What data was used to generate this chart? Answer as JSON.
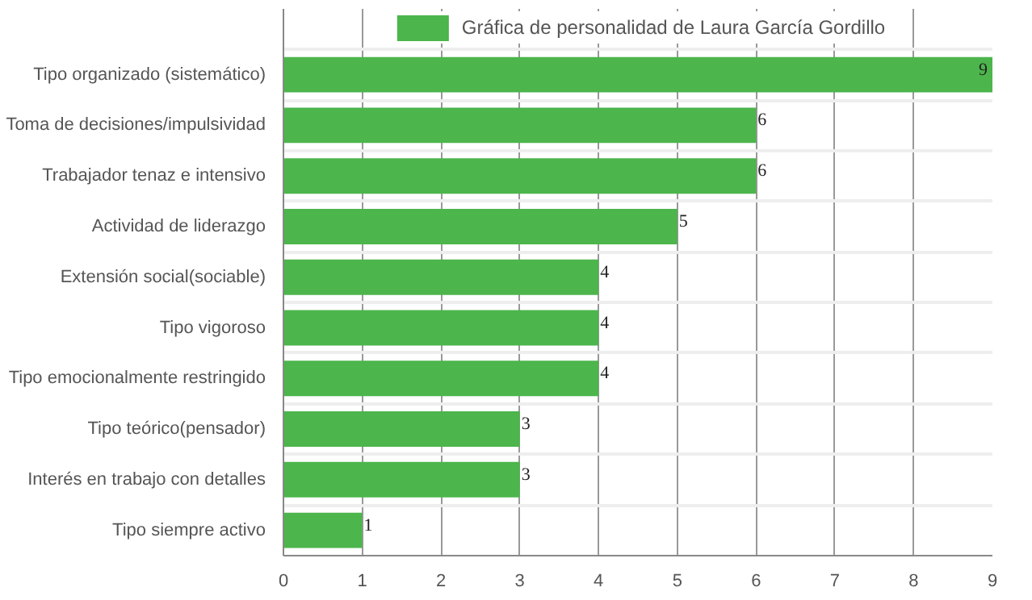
{
  "chart_data": {
    "type": "bar",
    "orientation": "horizontal",
    "categories": [
      "Tipo organizado (sistemático)",
      "Toma de decisiones/impulsividad",
      "Trabajador tenaz e intensivo",
      "Actividad de liderazgo",
      "Extensión social(sociable)",
      "Tipo vigoroso",
      "Tipo emocionalmente restringido",
      "Tipo teórico(pensador)",
      "Interés en trabajo con detalles",
      "Tipo siempre activo"
    ],
    "series": [
      {
        "name": "Gráfica de personalidad de Laura García Gordillo",
        "color": "#4cb54c",
        "values": [
          9,
          6,
          6,
          5,
          4,
          4,
          4,
          3,
          3,
          1
        ]
      }
    ],
    "xlim": [
      0,
      9
    ],
    "xticks": [
      0,
      1,
      2,
      3,
      4,
      5,
      6,
      7,
      8,
      9
    ],
    "grid": true,
    "legend": "top",
    "data_labels": true
  }
}
